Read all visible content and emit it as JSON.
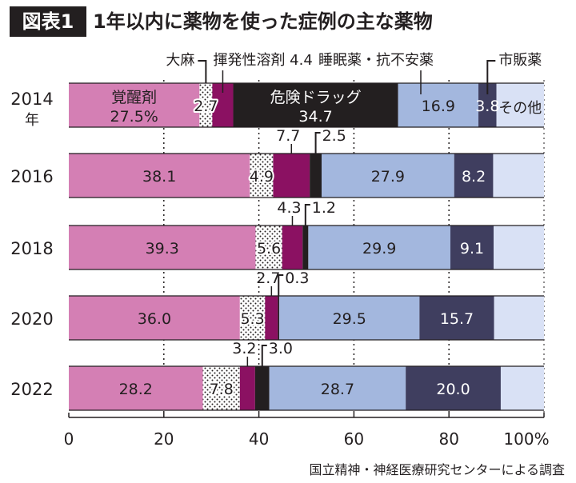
{
  "header": {
    "figure_label": "図表1",
    "title": "1年以内に薬物を使った症例の主な薬物"
  },
  "source": "国立精神・神経医療研究センターによる調査",
  "chart_data": {
    "type": "bar",
    "orientation": "horizontal",
    "stacked": true,
    "categories": [
      "2014年",
      "2016",
      "2018",
      "2020",
      "2022"
    ],
    "xlim": [
      0,
      100
    ],
    "xticks": [
      "0",
      "20",
      "40",
      "60",
      "80",
      "100%"
    ],
    "grid": "dotted vertical",
    "series": [
      {
        "name": "覚醒剤",
        "color": "#d47fb4",
        "values": [
          27.5,
          38.1,
          39.3,
          36.0,
          28.2
        ]
      },
      {
        "name": "大麻",
        "color": "#ffffff",
        "pattern": "dots",
        "values": [
          2.7,
          4.9,
          5.6,
          5.3,
          7.8
        ]
      },
      {
        "name": "揮発性溶剤",
        "color": "#8b1162",
        "values": [
          4.4,
          7.7,
          4.3,
          2.7,
          3.2
        ]
      },
      {
        "name": "危険ドラッグ",
        "color": "#231f20",
        "values": [
          34.7,
          2.5,
          1.2,
          0.3,
          3.0
        ]
      },
      {
        "name": "睡眠薬・抗不安薬",
        "color": "#a3b7de",
        "values": [
          16.9,
          27.9,
          29.9,
          29.5,
          28.7
        ]
      },
      {
        "name": "市販薬",
        "color": "#3f3e5f",
        "values": [
          3.8,
          8.2,
          9.1,
          15.7,
          20.0
        ]
      },
      {
        "name": "その他",
        "color": "#d9e1f5",
        "values": [
          10.0,
          10.7,
          10.6,
          10.5,
          9.1
        ]
      }
    ],
    "labels": {
      "meth_2014": "覚醒剤",
      "meth_2014_value": "27.5%",
      "dangerous_2014": "危険ドラッグ",
      "dangerous_2014_value": "34.7",
      "other_2014": "その他",
      "cannabis": "大麻",
      "solvent_2014": "揮発性溶剤 4.4",
      "sleep": "睡眠薬・抗不安薬",
      "otc": "市販薬",
      "row_values": [
        [
          "",
          "2.7",
          "",
          "",
          "16.9",
          "3.8",
          ""
        ],
        [
          "38.1",
          "4.9",
          "7.7",
          "2.5",
          "27.9",
          "8.2",
          ""
        ],
        [
          "39.3",
          "5.6",
          "4.3",
          "1.2",
          "29.9",
          "9.1",
          ""
        ],
        [
          "36.0",
          "5.3",
          "2.7",
          "0.3",
          "29.5",
          "15.7",
          ""
        ],
        [
          "28.2",
          "7.8",
          "3.2",
          "3.0",
          "28.7",
          "20.0",
          ""
        ]
      ]
    }
  }
}
